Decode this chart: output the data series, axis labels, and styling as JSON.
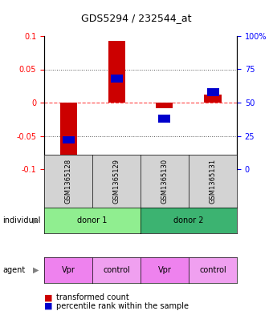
{
  "title": "GDS5294 / 232544_at",
  "samples": [
    "GSM1365128",
    "GSM1365129",
    "GSM1365130",
    "GSM1365131"
  ],
  "red_values": [
    -0.108,
    0.093,
    -0.008,
    0.012
  ],
  "blue_values_pct": [
    22,
    68,
    38,
    58
  ],
  "ylim_left": [
    -0.1,
    0.1
  ],
  "ylim_right": [
    0,
    100
  ],
  "yticks_left": [
    -0.1,
    -0.05,
    0,
    0.05,
    0.1
  ],
  "yticks_right": [
    0,
    25,
    50,
    75,
    100
  ],
  "ytick_labels_left": [
    "-0.1",
    "-0.05",
    "0",
    "0.05",
    "0.1"
  ],
  "ytick_labels_right": [
    "0",
    "25",
    "50",
    "75",
    "100%"
  ],
  "individual_labels": [
    "donor 1",
    "donor 2"
  ],
  "individual_colors": [
    "#90EE90",
    "#3CB371"
  ],
  "agent_labels": [
    "Vpr",
    "control",
    "Vpr",
    "control"
  ],
  "agent_color": "#EE82EE",
  "agent_color_light": "#F0A0F0",
  "sample_bg_color": "#D3D3D3",
  "red_bar_color": "#CC0000",
  "blue_bar_color": "#0000CC",
  "hline_color_red": "#FF4444",
  "hline_color_black": "black",
  "dotted_color": "#555555"
}
